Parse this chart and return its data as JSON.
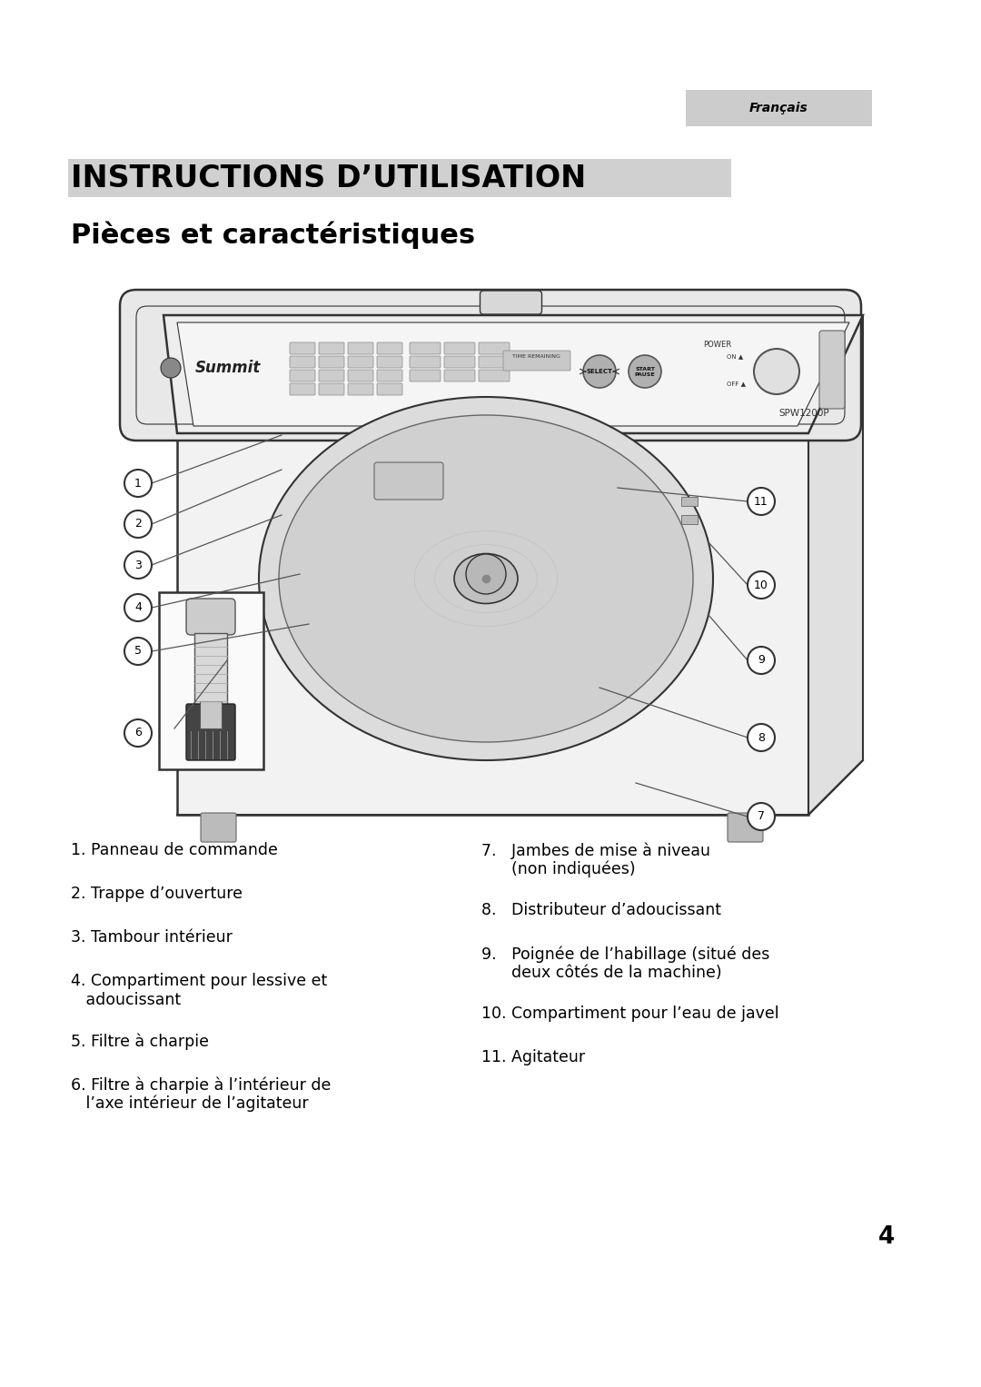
{
  "page_bg": "#ffffff",
  "francais_label": "Français",
  "francais_box_color": "#cccccc",
  "section_title": "INSTRUCTIONS D’UTILISATION",
  "section_bar_color": "#d0d0d0",
  "subsection_title": "Pièces et caractéristiques",
  "page_number": "4",
  "circle_fill": "#404040",
  "circle_text": "#ffffff",
  "text_color": "#000000",
  "line_color": "#555555",
  "diagram_line": "#333333",
  "machine_fill": "#f0f0f0",
  "machine_edge": "#333333",
  "panel_fill": "#e8e8e8",
  "drum_fill": "#e0e0e0",
  "inner_fill": "#d8d8d8",
  "left_items_line1": [
    "1. Panneau de commande",
    "2. Trappe d’ouverture",
    "3. Tambour intérieur",
    "4. Compartiment pour lessive et",
    "5. Filtre à charpie",
    "6. Filtre à charpie à l’intérieur de"
  ],
  "left_items_line2": [
    "",
    "",
    "",
    "   adoucissant",
    "",
    "   l’axe intérieur de l’agitateur"
  ],
  "right_items_line1": [
    "7.   Jambes de mise à niveau",
    "8.   Distributeur d’adoucissant",
    "9.   Poignée de l’habillage (situé des",
    "10. Compartiment pour l’eau de javel",
    "11. Agitateur"
  ],
  "right_items_line2": [
    "      (non indiquées)",
    "",
    "      deux côtés de la machine)",
    "",
    ""
  ]
}
